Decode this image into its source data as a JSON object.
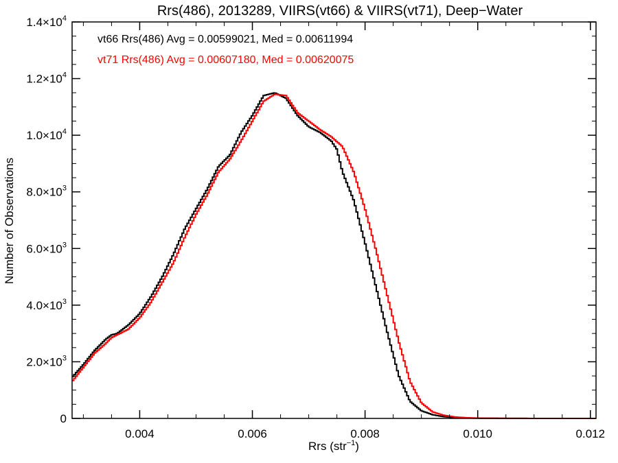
{
  "chart_data": {
    "type": "line",
    "title": "Rrs(486), 2013289, VIIRS(vt66) & VIIRS(vt71), Deep−Water",
    "xlabel": "Rrs (str",
    "xlabel_sup": "−1",
    "xlabel_end": ")",
    "ylabel": "Number of Observations",
    "xlim": [
      0.0028,
      0.0121
    ],
    "ylim": [
      0,
      14000
    ],
    "grid": false,
    "legend_position": "top-left",
    "x_ticks": [
      {
        "value": 0.004,
        "label": "0.004"
      },
      {
        "value": 0.006,
        "label": "0.006"
      },
      {
        "value": 0.008,
        "label": "0.008"
      },
      {
        "value": 0.01,
        "label": "0.010"
      },
      {
        "value": 0.012,
        "label": "0.012"
      }
    ],
    "y_ticks": [
      {
        "value": 0,
        "mant": "0",
        "exp": ""
      },
      {
        "value": 2000,
        "mant": "2.0×10",
        "exp": "3"
      },
      {
        "value": 4000,
        "mant": "4.0×10",
        "exp": "3"
      },
      {
        "value": 6000,
        "mant": "6.0×10",
        "exp": "3"
      },
      {
        "value": 8000,
        "mant": "8.0×10",
        "exp": "3"
      },
      {
        "value": 10000,
        "mant": "1.0×10",
        "exp": "4"
      },
      {
        "value": 12000,
        "mant": "1.2×10",
        "exp": "4"
      },
      {
        "value": 14000,
        "mant": "1.4×10",
        "exp": "4"
      }
    ],
    "annotations": [
      {
        "text": "vt66 Rrs(486) Avg = 0.00599021, Med = 0.00611994",
        "color": "#000000"
      },
      {
        "text": "vt71 Rrs(486) Avg = 0.00607180, Med = 0.00620075",
        "color": "#ff0000"
      }
    ],
    "series": [
      {
        "color": "#000000",
        "points": [
          [
            0.0028,
            1450
          ],
          [
            0.003,
            1900
          ],
          [
            0.0032,
            2400
          ],
          [
            0.0034,
            2800
          ],
          [
            0.0035,
            2950
          ],
          [
            0.0036,
            3000
          ],
          [
            0.0038,
            3300
          ],
          [
            0.004,
            3700
          ],
          [
            0.0042,
            4300
          ],
          [
            0.0044,
            5000
          ],
          [
            0.0046,
            5800
          ],
          [
            0.0048,
            6700
          ],
          [
            0.005,
            7400
          ],
          [
            0.0052,
            8100
          ],
          [
            0.0054,
            8900
          ],
          [
            0.0056,
            9300
          ],
          [
            0.0058,
            10100
          ],
          [
            0.006,
            10700
          ],
          [
            0.0062,
            11400
          ],
          [
            0.0064,
            11500
          ],
          [
            0.0066,
            11300
          ],
          [
            0.0068,
            10700
          ],
          [
            0.007,
            10300
          ],
          [
            0.0072,
            10100
          ],
          [
            0.0074,
            9800
          ],
          [
            0.0075,
            9500
          ],
          [
            0.0076,
            8700
          ],
          [
            0.0078,
            7700
          ],
          [
            0.008,
            6200
          ],
          [
            0.0082,
            4600
          ],
          [
            0.0084,
            3000
          ],
          [
            0.0086,
            1500
          ],
          [
            0.0088,
            600
          ],
          [
            0.009,
            270
          ],
          [
            0.0092,
            130
          ],
          [
            0.0094,
            60
          ],
          [
            0.0096,
            30
          ],
          [
            0.0098,
            15
          ],
          [
            0.01,
            8
          ],
          [
            0.0105,
            3
          ],
          [
            0.011,
            1
          ],
          [
            0.0121,
            0
          ]
        ]
      },
      {
        "color": "#ff0000",
        "points": [
          [
            0.0028,
            1300
          ],
          [
            0.003,
            1800
          ],
          [
            0.0032,
            2300
          ],
          [
            0.0034,
            2650
          ],
          [
            0.0035,
            2850
          ],
          [
            0.0036,
            2950
          ],
          [
            0.0038,
            3150
          ],
          [
            0.004,
            3550
          ],
          [
            0.0042,
            4100
          ],
          [
            0.0044,
            4800
          ],
          [
            0.0046,
            5500
          ],
          [
            0.0048,
            6400
          ],
          [
            0.005,
            7200
          ],
          [
            0.0052,
            7900
          ],
          [
            0.0054,
            8700
          ],
          [
            0.0056,
            9150
          ],
          [
            0.0058,
            9800
          ],
          [
            0.006,
            10500
          ],
          [
            0.0062,
            11200
          ],
          [
            0.0064,
            11450
          ],
          [
            0.0066,
            11400
          ],
          [
            0.0068,
            10800
          ],
          [
            0.007,
            10500
          ],
          [
            0.0072,
            10200
          ],
          [
            0.0074,
            9950
          ],
          [
            0.0076,
            9600
          ],
          [
            0.0078,
            8700
          ],
          [
            0.008,
            7400
          ],
          [
            0.0082,
            5900
          ],
          [
            0.0084,
            4300
          ],
          [
            0.0086,
            2700
          ],
          [
            0.0088,
            1300
          ],
          [
            0.009,
            550
          ],
          [
            0.0092,
            230
          ],
          [
            0.0094,
            110
          ],
          [
            0.0096,
            50
          ],
          [
            0.0098,
            25
          ],
          [
            0.01,
            12
          ],
          [
            0.0105,
            4
          ],
          [
            0.011,
            1
          ],
          [
            0.0121,
            0
          ]
        ]
      }
    ]
  }
}
